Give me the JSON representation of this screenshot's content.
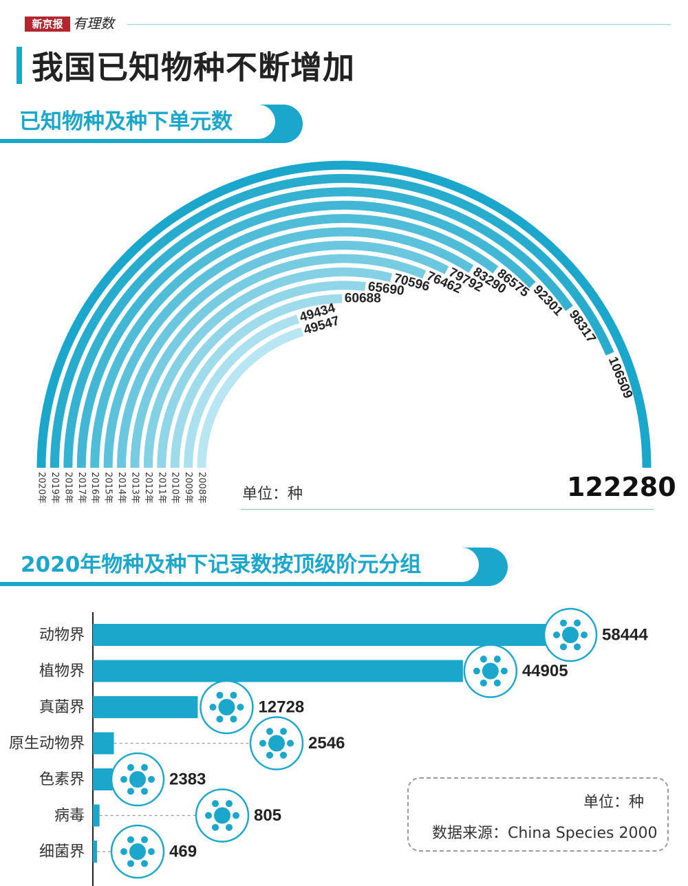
{
  "header": {
    "logo_text": "新京报",
    "logo_script": "有理数",
    "title": "我国已知物种不断增加"
  },
  "section1": {
    "title": "已知物种及种下单元数"
  },
  "section2": {
    "title": "2020年物种及种下记录数按顶级阶元分组"
  },
  "arc_unit": "单位：种",
  "source": {
    "unit": "单位：种",
    "text": "数据来源：China Species 2000"
  },
  "colors": {
    "accent": "#1ba7cb",
    "light": "#b8e6f2"
  },
  "chart_data": [
    {
      "type": "bar",
      "title": "已知物种及种下单元数",
      "categories": [
        "2020年",
        "2019年",
        "2018年",
        "2017年",
        "2016年",
        "2015年",
        "2014年",
        "2013年",
        "2012年",
        "2011年",
        "2010年",
        "2009年",
        "2008年"
      ],
      "values": [
        122280,
        106509,
        98317,
        92301,
        86575,
        83290,
        79792,
        76462,
        70596,
        65690,
        60688,
        49434,
        49547
      ],
      "ylabel": "单位：种"
    },
    {
      "type": "bar",
      "title": "2020年物种及种下记录数按顶级阶元分组",
      "categories": [
        "动物界",
        "植物界",
        "真菌界",
        "原生动物界",
        "色素界",
        "病毒",
        "细菌界"
      ],
      "values": [
        58444,
        44905,
        12728,
        2546,
        2383,
        805,
        469
      ],
      "icons": [
        "reindeer-icon",
        "plant-icon",
        "mushroom-icon",
        "protozoa-icon",
        "chromista-icon",
        "virus-icon",
        "bacteria-icon"
      ],
      "ylabel": "单位：种"
    }
  ]
}
